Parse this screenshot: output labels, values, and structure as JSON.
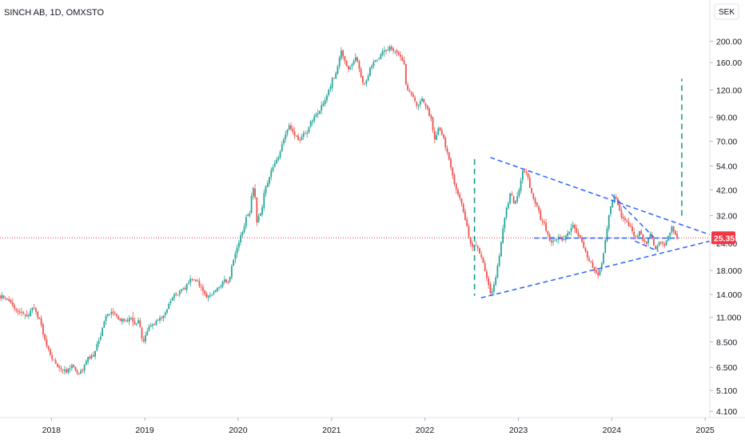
{
  "header": {
    "title": "SINCH AB, 1D, OMXSTO"
  },
  "currency_button": {
    "label": "SEK"
  },
  "current_price": {
    "label": "25.35",
    "value": 25.35
  },
  "colors": {
    "up": "#26a69a",
    "down": "#ef5350",
    "trend": "#2962ff",
    "target": "#089981",
    "price_line": "#f23645",
    "axis_text": "#131722",
    "axis_line": "#e0e3eb"
  },
  "chart_data": {
    "type": "candlestick",
    "title": "SINCH AB, 1D, OMXSTO",
    "y_scale": "log",
    "ylim": [
      3.9,
      230
    ],
    "xlim": [
      2017.45,
      2025.05
    ],
    "y_ticks": [
      {
        "label": "200.00",
        "value": 200
      },
      {
        "label": "160.00",
        "value": 160
      },
      {
        "label": "120.00",
        "value": 120
      },
      {
        "label": "90.00",
        "value": 90
      },
      {
        "label": "70.00",
        "value": 70
      },
      {
        "label": "54.00",
        "value": 54
      },
      {
        "label": "42.00",
        "value": 42
      },
      {
        "label": "32.00",
        "value": 32
      },
      {
        "label": "24.00",
        "value": 24
      },
      {
        "label": "18.000",
        "value": 18
      },
      {
        "label": "14.000",
        "value": 14
      },
      {
        "label": "11.000",
        "value": 11
      },
      {
        "label": "8.500",
        "value": 8.5
      },
      {
        "label": "6.500",
        "value": 6.5
      },
      {
        "label": "5.100",
        "value": 5.1
      },
      {
        "label": "4.100",
        "value": 4.1
      }
    ],
    "x_ticks": [
      {
        "label": "2018",
        "value": 2018
      },
      {
        "label": "2019",
        "value": 2019
      },
      {
        "label": "2020",
        "value": 2020
      },
      {
        "label": "2021",
        "value": 2021
      },
      {
        "label": "2022",
        "value": 2022
      },
      {
        "label": "2023",
        "value": 2023
      },
      {
        "label": "2024",
        "value": 2024
      },
      {
        "label": "2025",
        "value": 2025
      }
    ],
    "price_path": [
      [
        2017.45,
        13.6
      ],
      [
        2017.55,
        13.2
      ],
      [
        2017.62,
        12.0
      ],
      [
        2017.72,
        11.3
      ],
      [
        2017.8,
        11.8
      ],
      [
        2017.88,
        10.6
      ],
      [
        2017.93,
        8.6
      ],
      [
        2018.0,
        7.0
      ],
      [
        2018.08,
        6.7
      ],
      [
        2018.16,
        6.3
      ],
      [
        2018.22,
        6.8
      ],
      [
        2018.27,
        6.0
      ],
      [
        2018.33,
        6.4
      ],
      [
        2018.4,
        7.0
      ],
      [
        2018.46,
        7.8
      ],
      [
        2018.52,
        8.8
      ],
      [
        2018.58,
        10.8
      ],
      [
        2018.65,
        11.2
      ],
      [
        2018.72,
        10.6
      ],
      [
        2018.8,
        11.0
      ],
      [
        2018.88,
        10.5
      ],
      [
        2018.93,
        11.0
      ],
      [
        2018.98,
        8.8
      ],
      [
        2019.04,
        10.0
      ],
      [
        2019.12,
        10.8
      ],
      [
        2019.2,
        11.5
      ],
      [
        2019.27,
        13.0
      ],
      [
        2019.35,
        14.5
      ],
      [
        2019.43,
        15.3
      ],
      [
        2019.5,
        17.0
      ],
      [
        2019.56,
        15.8
      ],
      [
        2019.62,
        14.2
      ],
      [
        2019.7,
        13.3
      ],
      [
        2019.78,
        14.8
      ],
      [
        2019.85,
        16.8
      ],
      [
        2019.9,
        16.0
      ],
      [
        2019.95,
        20.5
      ],
      [
        2020.0,
        23.0
      ],
      [
        2020.06,
        28.0
      ],
      [
        2020.12,
        33.0
      ],
      [
        2020.17,
        46.0
      ],
      [
        2020.2,
        30.0
      ],
      [
        2020.25,
        33.0
      ],
      [
        2020.3,
        44.0
      ],
      [
        2020.36,
        52.0
      ],
      [
        2020.43,
        60.0
      ],
      [
        2020.5,
        74.0
      ],
      [
        2020.55,
        82.0
      ],
      [
        2020.6,
        76.0
      ],
      [
        2020.66,
        70.0
      ],
      [
        2020.72,
        76.0
      ],
      [
        2020.78,
        84.0
      ],
      [
        2020.85,
        92.0
      ],
      [
        2020.9,
        100.0
      ],
      [
        2020.94,
        108.0
      ],
      [
        2021.0,
        130.0
      ],
      [
        2021.05,
        145.0
      ],
      [
        2021.1,
        180.0
      ],
      [
        2021.15,
        155.0
      ],
      [
        2021.2,
        150.0
      ],
      [
        2021.26,
        170.0
      ],
      [
        2021.3,
        148.0
      ],
      [
        2021.35,
        125.0
      ],
      [
        2021.42,
        155.0
      ],
      [
        2021.5,
        168.0
      ],
      [
        2021.55,
        178.0
      ],
      [
        2021.62,
        200.0
      ],
      [
        2021.67,
        186.0
      ],
      [
        2021.72,
        172.0
      ],
      [
        2021.78,
        152.0
      ],
      [
        2021.8,
        122.0
      ],
      [
        2021.86,
        116.0
      ],
      [
        2021.92,
        104.0
      ],
      [
        2021.97,
        110.0
      ],
      [
        2022.03,
        98.0
      ],
      [
        2022.07,
        88.0
      ],
      [
        2022.1,
        68.0
      ],
      [
        2022.15,
        80.0
      ],
      [
        2022.2,
        72.0
      ],
      [
        2022.25,
        58.0
      ],
      [
        2022.3,
        48.0
      ],
      [
        2022.35,
        40.0
      ],
      [
        2022.42,
        32.0
      ],
      [
        2022.47,
        26.0
      ],
      [
        2022.5,
        22.0
      ],
      [
        2022.55,
        24.5
      ],
      [
        2022.6,
        20.5
      ],
      [
        2022.65,
        17.5
      ],
      [
        2022.7,
        14.2
      ],
      [
        2022.75,
        15.5
      ],
      [
        2022.8,
        21.0
      ],
      [
        2022.83,
        27.0
      ],
      [
        2022.86,
        32.0
      ],
      [
        2022.92,
        41.0
      ],
      [
        2022.96,
        36.0
      ],
      [
        2023.0,
        40.0
      ],
      [
        2023.05,
        52.0
      ],
      [
        2023.1,
        48.0
      ],
      [
        2023.15,
        40.0
      ],
      [
        2023.2,
        36.0
      ],
      [
        2023.25,
        30.0
      ],
      [
        2023.3,
        26.5
      ],
      [
        2023.36,
        24.5
      ],
      [
        2023.42,
        26.0
      ],
      [
        2023.47,
        24.0
      ],
      [
        2023.53,
        26.0
      ],
      [
        2023.58,
        29.0
      ],
      [
        2023.62,
        27.0
      ],
      [
        2023.68,
        23.5
      ],
      [
        2023.73,
        21.0
      ],
      [
        2023.78,
        19.5
      ],
      [
        2023.82,
        17.5
      ],
      [
        2023.86,
        16.5
      ],
      [
        2023.9,
        20.0
      ],
      [
        2023.94,
        26.5
      ],
      [
        2023.98,
        34.0
      ],
      [
        2024.02,
        40.0
      ],
      [
        2024.06,
        36.0
      ],
      [
        2024.1,
        33.0
      ],
      [
        2024.15,
        30.0
      ],
      [
        2024.2,
        28.0
      ],
      [
        2024.25,
        25.0
      ],
      [
        2024.3,
        26.5
      ],
      [
        2024.36,
        23.5
      ],
      [
        2024.42,
        26.5
      ],
      [
        2024.47,
        22.5
      ],
      [
        2024.52,
        24.5
      ],
      [
        2024.56,
        23.5
      ],
      [
        2024.6,
        26.0
      ],
      [
        2024.64,
        28.0
      ],
      [
        2024.67,
        27.0
      ],
      [
        2024.7,
        25.35
      ]
    ],
    "annotations": {
      "horizontal_line": {
        "price": 25.35
      },
      "horizontal_dashed": {
        "x1": 2023.17,
        "x2": 2024.72,
        "price": 25.3
      },
      "triangle_upper": {
        "x1": 2022.7,
        "y1": 59.0,
        "x2": 2025.05,
        "y2": 26.2
      },
      "triangle_lower": {
        "x1": 2022.6,
        "y1": 13.5,
        "x2": 2025.05,
        "y2": 24.5
      },
      "inner_upper": {
        "x1": 2024.0,
        "y1": 40.0,
        "x2": 2024.45,
        "y2": 25.5
      },
      "inner_lower": {
        "x1": 2024.25,
        "y1": 24.5,
        "x2": 2024.5,
        "y2": 22.0
      },
      "green_vertical_left": {
        "x": 2022.53,
        "y1": 58.0,
        "y2": 13.8
      },
      "green_vertical_right": {
        "x": 2024.75,
        "y1": 32.0,
        "y2": 135.0
      }
    }
  }
}
